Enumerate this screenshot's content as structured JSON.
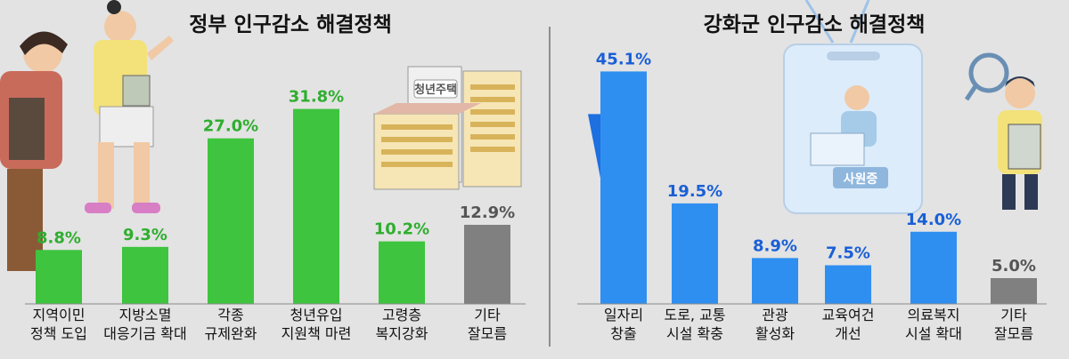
{
  "colors": {
    "background": "#e3e3e3",
    "government_bar": "#3ec43e",
    "government_bar_dark": "#27a22a",
    "government_value": "#2fae2f",
    "ganghwa_bar": "#2f8ff0",
    "ganghwa_bar_dark": "#1e6fe0",
    "ganghwa_value": "#1a5fd6",
    "other_bar": "#808080",
    "other_value": "#555555"
  },
  "decorations": {
    "building_sign": "청년주택",
    "id_card_label": "사원증"
  },
  "chart_data": [
    {
      "type": "bar",
      "title": "정부 인구감소 해결정책",
      "unit": "%",
      "categories": [
        [
          "지역이민",
          "정책 도입"
        ],
        [
          "지방소멸",
          "대응기금 확대"
        ],
        [
          "각종",
          "규제완화"
        ],
        [
          "청년유입",
          "지원책 마련"
        ],
        [
          "고령층",
          "복지강화"
        ],
        [
          "기타",
          "잘모름"
        ]
      ],
      "values": [
        8.8,
        9.3,
        27.0,
        31.8,
        10.2,
        12.9
      ],
      "value_labels": [
        "8.8%",
        "9.3%",
        "27.0%",
        "31.8%",
        "10.2%",
        "12.9%"
      ],
      "highlight_gray_index": 5,
      "grid": false,
      "legend": "none"
    },
    {
      "type": "bar",
      "title": "강화군 인구감소 해결정책",
      "unit": "%",
      "categories": [
        [
          "일자리",
          "창출"
        ],
        [
          "도로, 교통",
          "시설 확충"
        ],
        [
          "관광",
          "활성화"
        ],
        [
          "교육여건",
          "개선"
        ],
        [
          "의료복지",
          "시설 확대"
        ],
        [
          "기타",
          "잘모름"
        ]
      ],
      "values": [
        45.1,
        19.5,
        8.9,
        7.5,
        14.0,
        5.0
      ],
      "value_labels": [
        "45.1%",
        "19.5%",
        "8.9%",
        "7.5%",
        "14.0%",
        "5.0%"
      ],
      "highlight_gray_index": 5,
      "grid": false,
      "legend": "none"
    }
  ]
}
